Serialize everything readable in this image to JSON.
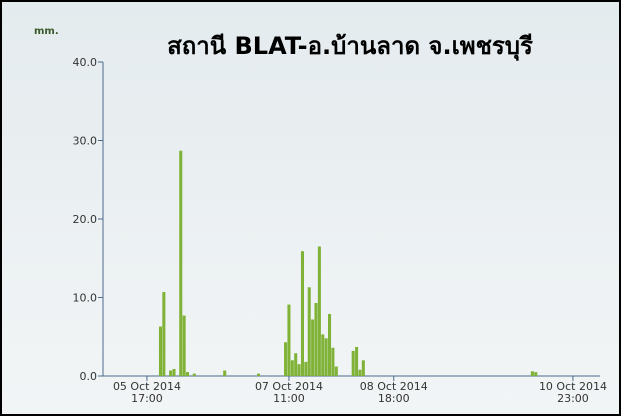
{
  "chart_data": {
    "type": "bar",
    "title": "สถานี BLAT-อ.บ้านลาด จ.เพชรบุรี",
    "y_unit": "mm.",
    "color": "#7fb236",
    "x": [
      "2014-10-05T21:00",
      "2014-10-05T22:00",
      "2014-10-06T00:00",
      "2014-10-06T01:00",
      "2014-10-06T03:00",
      "2014-10-06T04:00",
      "2014-10-06T05:00",
      "2014-10-06T07:00",
      "2014-10-06T16:00",
      "2014-10-07T02:00",
      "2014-10-07T10:00",
      "2014-10-07T11:00",
      "2014-10-07T12:00",
      "2014-10-07T13:00",
      "2014-10-07T14:00",
      "2014-10-07T15:00",
      "2014-10-07T16:00",
      "2014-10-07T17:00",
      "2014-10-07T18:00",
      "2014-10-07T19:00",
      "2014-10-07T20:00",
      "2014-10-07T21:00",
      "2014-10-07T22:00",
      "2014-10-07T23:00",
      "2014-10-08T00:00",
      "2014-10-08T01:00",
      "2014-10-08T06:00",
      "2014-10-08T07:00",
      "2014-10-08T08:00",
      "2014-10-08T09:00",
      "2014-10-10T11:00",
      "2014-10-10T12:00"
    ],
    "values": [
      6.3,
      10.7,
      0.7,
      0.9,
      28.7,
      7.7,
      0.5,
      0.3,
      0.7,
      0.3,
      4.3,
      9.1,
      2.0,
      2.9,
      1.5,
      15.9,
      1.8,
      11.3,
      7.2,
      9.3,
      16.5,
      5.3,
      4.8,
      7.9,
      3.6,
      1.2,
      3.2,
      3.7,
      0.8,
      2.0,
      0.6,
      0.5
    ],
    "xlim": [
      "2014-10-05T04:00",
      "2014-10-11T07:00"
    ],
    "xticks": [
      {
        "value": "2014-10-05T17:00",
        "label": "05 Oct 2014\n17:00"
      },
      {
        "value": "2014-10-07T11:00",
        "label": "07 Oct 2014\n11:00"
      },
      {
        "value": "2014-10-08T18:00",
        "label": "08 Oct 2014\n18:00"
      },
      {
        "value": "2014-10-10T23:00",
        "label": "10 Oct 2014\n23:00"
      }
    ],
    "ylim": [
      0,
      40
    ],
    "yticks": [
      {
        "value": 0,
        "label": "0.0"
      },
      {
        "value": 10,
        "label": "10.0"
      },
      {
        "value": 20,
        "label": "20.0"
      },
      {
        "value": 30,
        "label": "30.0"
      },
      {
        "value": 40,
        "label": "40.0"
      }
    ]
  }
}
